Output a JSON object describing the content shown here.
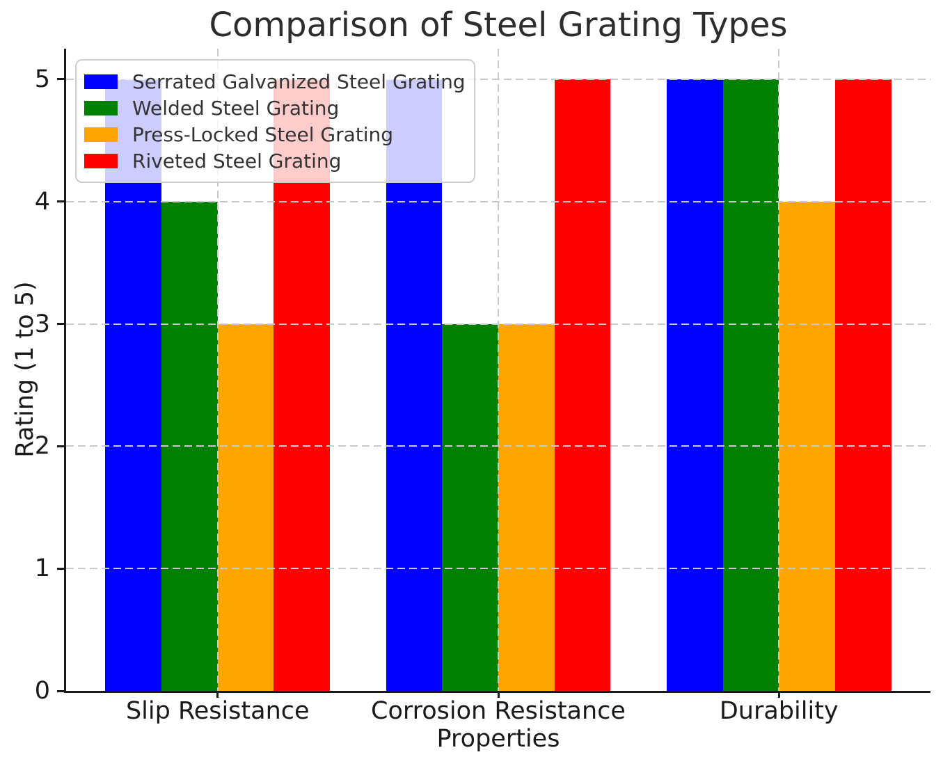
{
  "chart_data": {
    "type": "bar",
    "title": "Comparison of Steel Grating Types",
    "xlabel": "Properties",
    "ylabel": "Rating (1 to 5)",
    "categories": [
      "Slip Resistance",
      "Corrosion Resistance",
      "Durability"
    ],
    "series": [
      {
        "name": "Serrated Galvanized Steel Grating",
        "color": "#0000ff",
        "values": [
          5,
          5,
          5
        ]
      },
      {
        "name": "Welded Steel Grating",
        "color": "#008000",
        "values": [
          4,
          3,
          5
        ]
      },
      {
        "name": "Press-Locked Steel Grating",
        "color": "#ffa500",
        "values": [
          3,
          3,
          4
        ]
      },
      {
        "name": "Riveted Steel Grating",
        "color": "#ff0000",
        "values": [
          5,
          5,
          5
        ]
      }
    ],
    "yticks": [
      0,
      1,
      2,
      3,
      4,
      5
    ],
    "ylim": [
      0,
      5.25
    ],
    "bar_width": 0.2,
    "grid": true,
    "grid_style": "dashed",
    "legend_position": "upper-left",
    "colors": {
      "grid": "#c9c9c9",
      "axis": "#1a1a1a",
      "title_text": "#2d2d2d",
      "legend_border": "#cccccc"
    }
  }
}
